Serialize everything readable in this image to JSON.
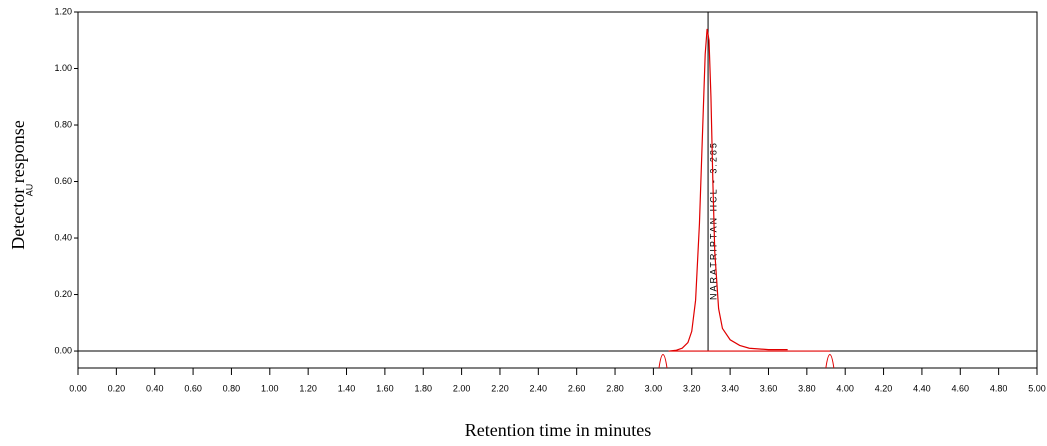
{
  "chart_data": {
    "type": "line",
    "y_label": "Detector response",
    "y_unit": "AU",
    "x_label": "Retention time in minutes",
    "xlim": [
      0,
      5
    ],
    "ylim": [
      -0.06,
      1.2
    ],
    "xticks": [
      {
        "value": 0,
        "label": "0.00"
      },
      {
        "value": 0.2,
        "label": "0.20"
      },
      {
        "value": 0.4,
        "label": "0.40"
      },
      {
        "value": 0.6,
        "label": "0.60"
      },
      {
        "value": 0.8,
        "label": "0.80"
      },
      {
        "value": 1,
        "label": "1.00"
      },
      {
        "value": 1.2,
        "label": "1.20"
      },
      {
        "value": 1.4,
        "label": "1.40"
      },
      {
        "value": 1.6,
        "label": "1.60"
      },
      {
        "value": 1.8,
        "label": "1.80"
      },
      {
        "value": 2,
        "label": "2.00"
      },
      {
        "value": 2.2,
        "label": "2.20"
      },
      {
        "value": 2.4,
        "label": "2.40"
      },
      {
        "value": 2.6,
        "label": "2.60"
      },
      {
        "value": 2.8,
        "label": "2.80"
      },
      {
        "value": 3,
        "label": "3.00"
      },
      {
        "value": 3.2,
        "label": "3.20"
      },
      {
        "value": 3.4,
        "label": "3.40"
      },
      {
        "value": 3.6,
        "label": "3.60"
      },
      {
        "value": 3.8,
        "label": "3.80"
      },
      {
        "value": 4,
        "label": "4.00"
      },
      {
        "value": 4.2,
        "label": "4.20"
      },
      {
        "value": 4.4,
        "label": "4.40"
      },
      {
        "value": 4.6,
        "label": "4.60"
      },
      {
        "value": 4.8,
        "label": "4.80"
      },
      {
        "value": 5,
        "label": "5.00"
      }
    ],
    "yticks": [
      {
        "value": 0,
        "label": "0.00"
      },
      {
        "value": 0.2,
        "label": "0.20"
      },
      {
        "value": 0.4,
        "label": "0.40"
      },
      {
        "value": 0.6,
        "label": "0.60"
      },
      {
        "value": 0.8,
        "label": "0.80"
      },
      {
        "value": 1,
        "label": "1.00"
      },
      {
        "value": 1.2,
        "label": "1.20"
      }
    ],
    "series": [
      {
        "color": "#e00000",
        "x": [
          3.08,
          3.12,
          3.15,
          3.18,
          3.2,
          3.22,
          3.24,
          3.26,
          3.27,
          3.28,
          3.29,
          3.3,
          3.31,
          3.32,
          3.34,
          3.36,
          3.4,
          3.45,
          3.5,
          3.6,
          3.7
        ],
        "values": [
          0,
          0.003,
          0.01,
          0.03,
          0.07,
          0.18,
          0.45,
          0.85,
          1.05,
          1.14,
          1.1,
          0.9,
          0.6,
          0.35,
          0.15,
          0.08,
          0.04,
          0.02,
          0.01,
          0.005,
          0.005
        ]
      }
    ],
    "baseline": {
      "color": "#e00000",
      "x": [
        3.08,
        3.92
      ],
      "values": [
        0,
        0
      ]
    },
    "integration_marks": [
      3.05,
      3.92
    ],
    "peak": {
      "x": 3.285,
      "label": "NARATRIPTAN HCL - 3.285"
    }
  }
}
